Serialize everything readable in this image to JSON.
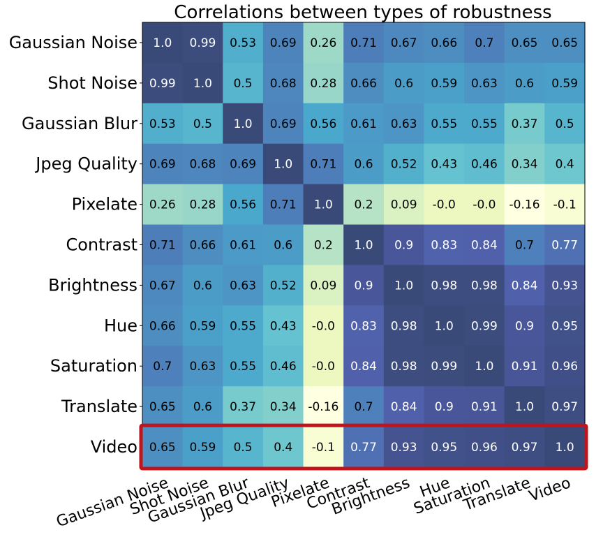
{
  "chart_data": {
    "type": "heatmap",
    "title": "Correlations between types of robustness",
    "rows": [
      "Gaussian Noise",
      "Shot Noise",
      "Gaussian Blur",
      "Jpeg Quality",
      "Pixelate",
      "Contrast",
      "Brightness",
      "Hue",
      "Saturation",
      "Translate",
      "Video"
    ],
    "columns": [
      "Gaussian Noise",
      "Shot Noise",
      "Gaussian Blur",
      "Jpeg Quality",
      "Pixelate",
      "Contrast",
      "Brightness",
      "Hue",
      "Saturation",
      "Translate",
      "Video"
    ],
    "values": [
      [
        "1.0",
        "0.99",
        "0.53",
        "0.69",
        "0.26",
        "0.71",
        "0.67",
        "0.66",
        "0.7",
        "0.65",
        "0.65"
      ],
      [
        "0.99",
        "1.0",
        "0.5",
        "0.68",
        "0.28",
        "0.66",
        "0.6",
        "0.59",
        "0.63",
        "0.6",
        "0.59"
      ],
      [
        "0.53",
        "0.5",
        "1.0",
        "0.69",
        "0.56",
        "0.61",
        "0.63",
        "0.55",
        "0.55",
        "0.37",
        "0.5"
      ],
      [
        "0.69",
        "0.68",
        "0.69",
        "1.0",
        "0.71",
        "0.6",
        "0.52",
        "0.43",
        "0.46",
        "0.34",
        "0.4"
      ],
      [
        "0.26",
        "0.28",
        "0.56",
        "0.71",
        "1.0",
        "0.2",
        "0.09",
        "-0.0",
        "-0.0",
        "-0.16",
        "-0.1"
      ],
      [
        "0.71",
        "0.66",
        "0.61",
        "0.6",
        "0.2",
        "1.0",
        "0.9",
        "0.83",
        "0.84",
        "0.7",
        "0.77"
      ],
      [
        "0.67",
        "0.6",
        "0.63",
        "0.52",
        "0.09",
        "0.9",
        "1.0",
        "0.98",
        "0.98",
        "0.84",
        "0.93"
      ],
      [
        "0.66",
        "0.59",
        "0.55",
        "0.43",
        "-0.0",
        "0.83",
        "0.98",
        "1.0",
        "0.99",
        "0.9",
        "0.95"
      ],
      [
        "0.7",
        "0.63",
        "0.55",
        "0.46",
        "-0.0",
        "0.84",
        "0.98",
        "0.99",
        "1.0",
        "0.91",
        "0.96"
      ],
      [
        "0.65",
        "0.6",
        "0.37",
        "0.34",
        "-0.16",
        "0.7",
        "0.84",
        "0.9",
        "0.91",
        "1.0",
        "0.97"
      ],
      [
        "0.65",
        "0.59",
        "0.5",
        "0.4",
        "-0.1",
        "0.77",
        "0.93",
        "0.95",
        "0.96",
        "0.97",
        "1.0"
      ]
    ],
    "value_range": [
      -0.16,
      1.0
    ],
    "colormap": "YlGnBu",
    "highlighted_row": "Video",
    "highlight_color": "#c0141c",
    "grid": false,
    "legend": "none"
  }
}
